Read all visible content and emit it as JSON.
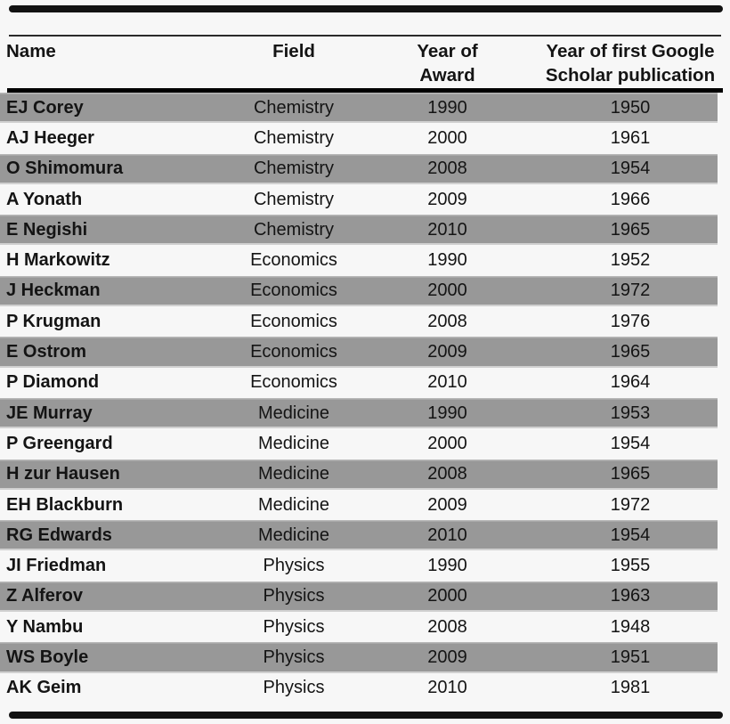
{
  "colors": {
    "stripe_gray": "#989898",
    "rule_black": "#000000",
    "bar_black": "#121212",
    "text": "#141414",
    "background": "#f7f7f7"
  },
  "table": {
    "headers": [
      {
        "lines": [
          "Name"
        ]
      },
      {
        "lines": [
          "Field"
        ]
      },
      {
        "lines": [
          "Year of",
          "Award"
        ]
      },
      {
        "lines": [
          "Year of first Google",
          "Scholar publication"
        ]
      }
    ],
    "rows": [
      {
        "name": "EJ Corey",
        "field": "Chemistry",
        "award": "1990",
        "pub": "1950"
      },
      {
        "name": "AJ Heeger",
        "field": "Chemistry",
        "award": "2000",
        "pub": "1961"
      },
      {
        "name": "O Shimomura",
        "field": "Chemistry",
        "award": "2008",
        "pub": "1954"
      },
      {
        "name": "A Yonath",
        "field": "Chemistry",
        "award": "2009",
        "pub": "1966"
      },
      {
        "name": "E Negishi",
        "field": "Chemistry",
        "award": "2010",
        "pub": "1965"
      },
      {
        "name": "H Markowitz",
        "field": "Economics",
        "award": "1990",
        "pub": "1952"
      },
      {
        "name": "J Heckman",
        "field": "Economics",
        "award": "2000",
        "pub": "1972"
      },
      {
        "name": "P Krugman",
        "field": "Economics",
        "award": "2008",
        "pub": "1976"
      },
      {
        "name": "E Ostrom",
        "field": "Economics",
        "award": "2009",
        "pub": "1965"
      },
      {
        "name": "P Diamond",
        "field": "Economics",
        "award": "2010",
        "pub": "1964"
      },
      {
        "name": "JE Murray",
        "field": "Medicine",
        "award": "1990",
        "pub": "1953"
      },
      {
        "name": "P Greengard",
        "field": "Medicine",
        "award": "2000",
        "pub": "1954"
      },
      {
        "name": "H zur Hausen",
        "field": "Medicine",
        "award": "2008",
        "pub": "1965"
      },
      {
        "name": "EH Blackburn",
        "field": "Medicine",
        "award": "2009",
        "pub": "1972"
      },
      {
        "name": "RG Edwards",
        "field": "Medicine",
        "award": "2010",
        "pub": "1954"
      },
      {
        "name": "JI Friedman",
        "field": "Physics",
        "award": "1990",
        "pub": "1955"
      },
      {
        "name": "Z Alferov",
        "field": "Physics",
        "award": "2000",
        "pub": "1963"
      },
      {
        "name": "Y Nambu",
        "field": "Physics",
        "award": "2008",
        "pub": "1948"
      },
      {
        "name": "WS Boyle",
        "field": "Physics",
        "award": "2009",
        "pub": "1951"
      },
      {
        "name": "AK Geim",
        "field": "Physics",
        "award": "2010",
        "pub": "1981"
      }
    ]
  }
}
